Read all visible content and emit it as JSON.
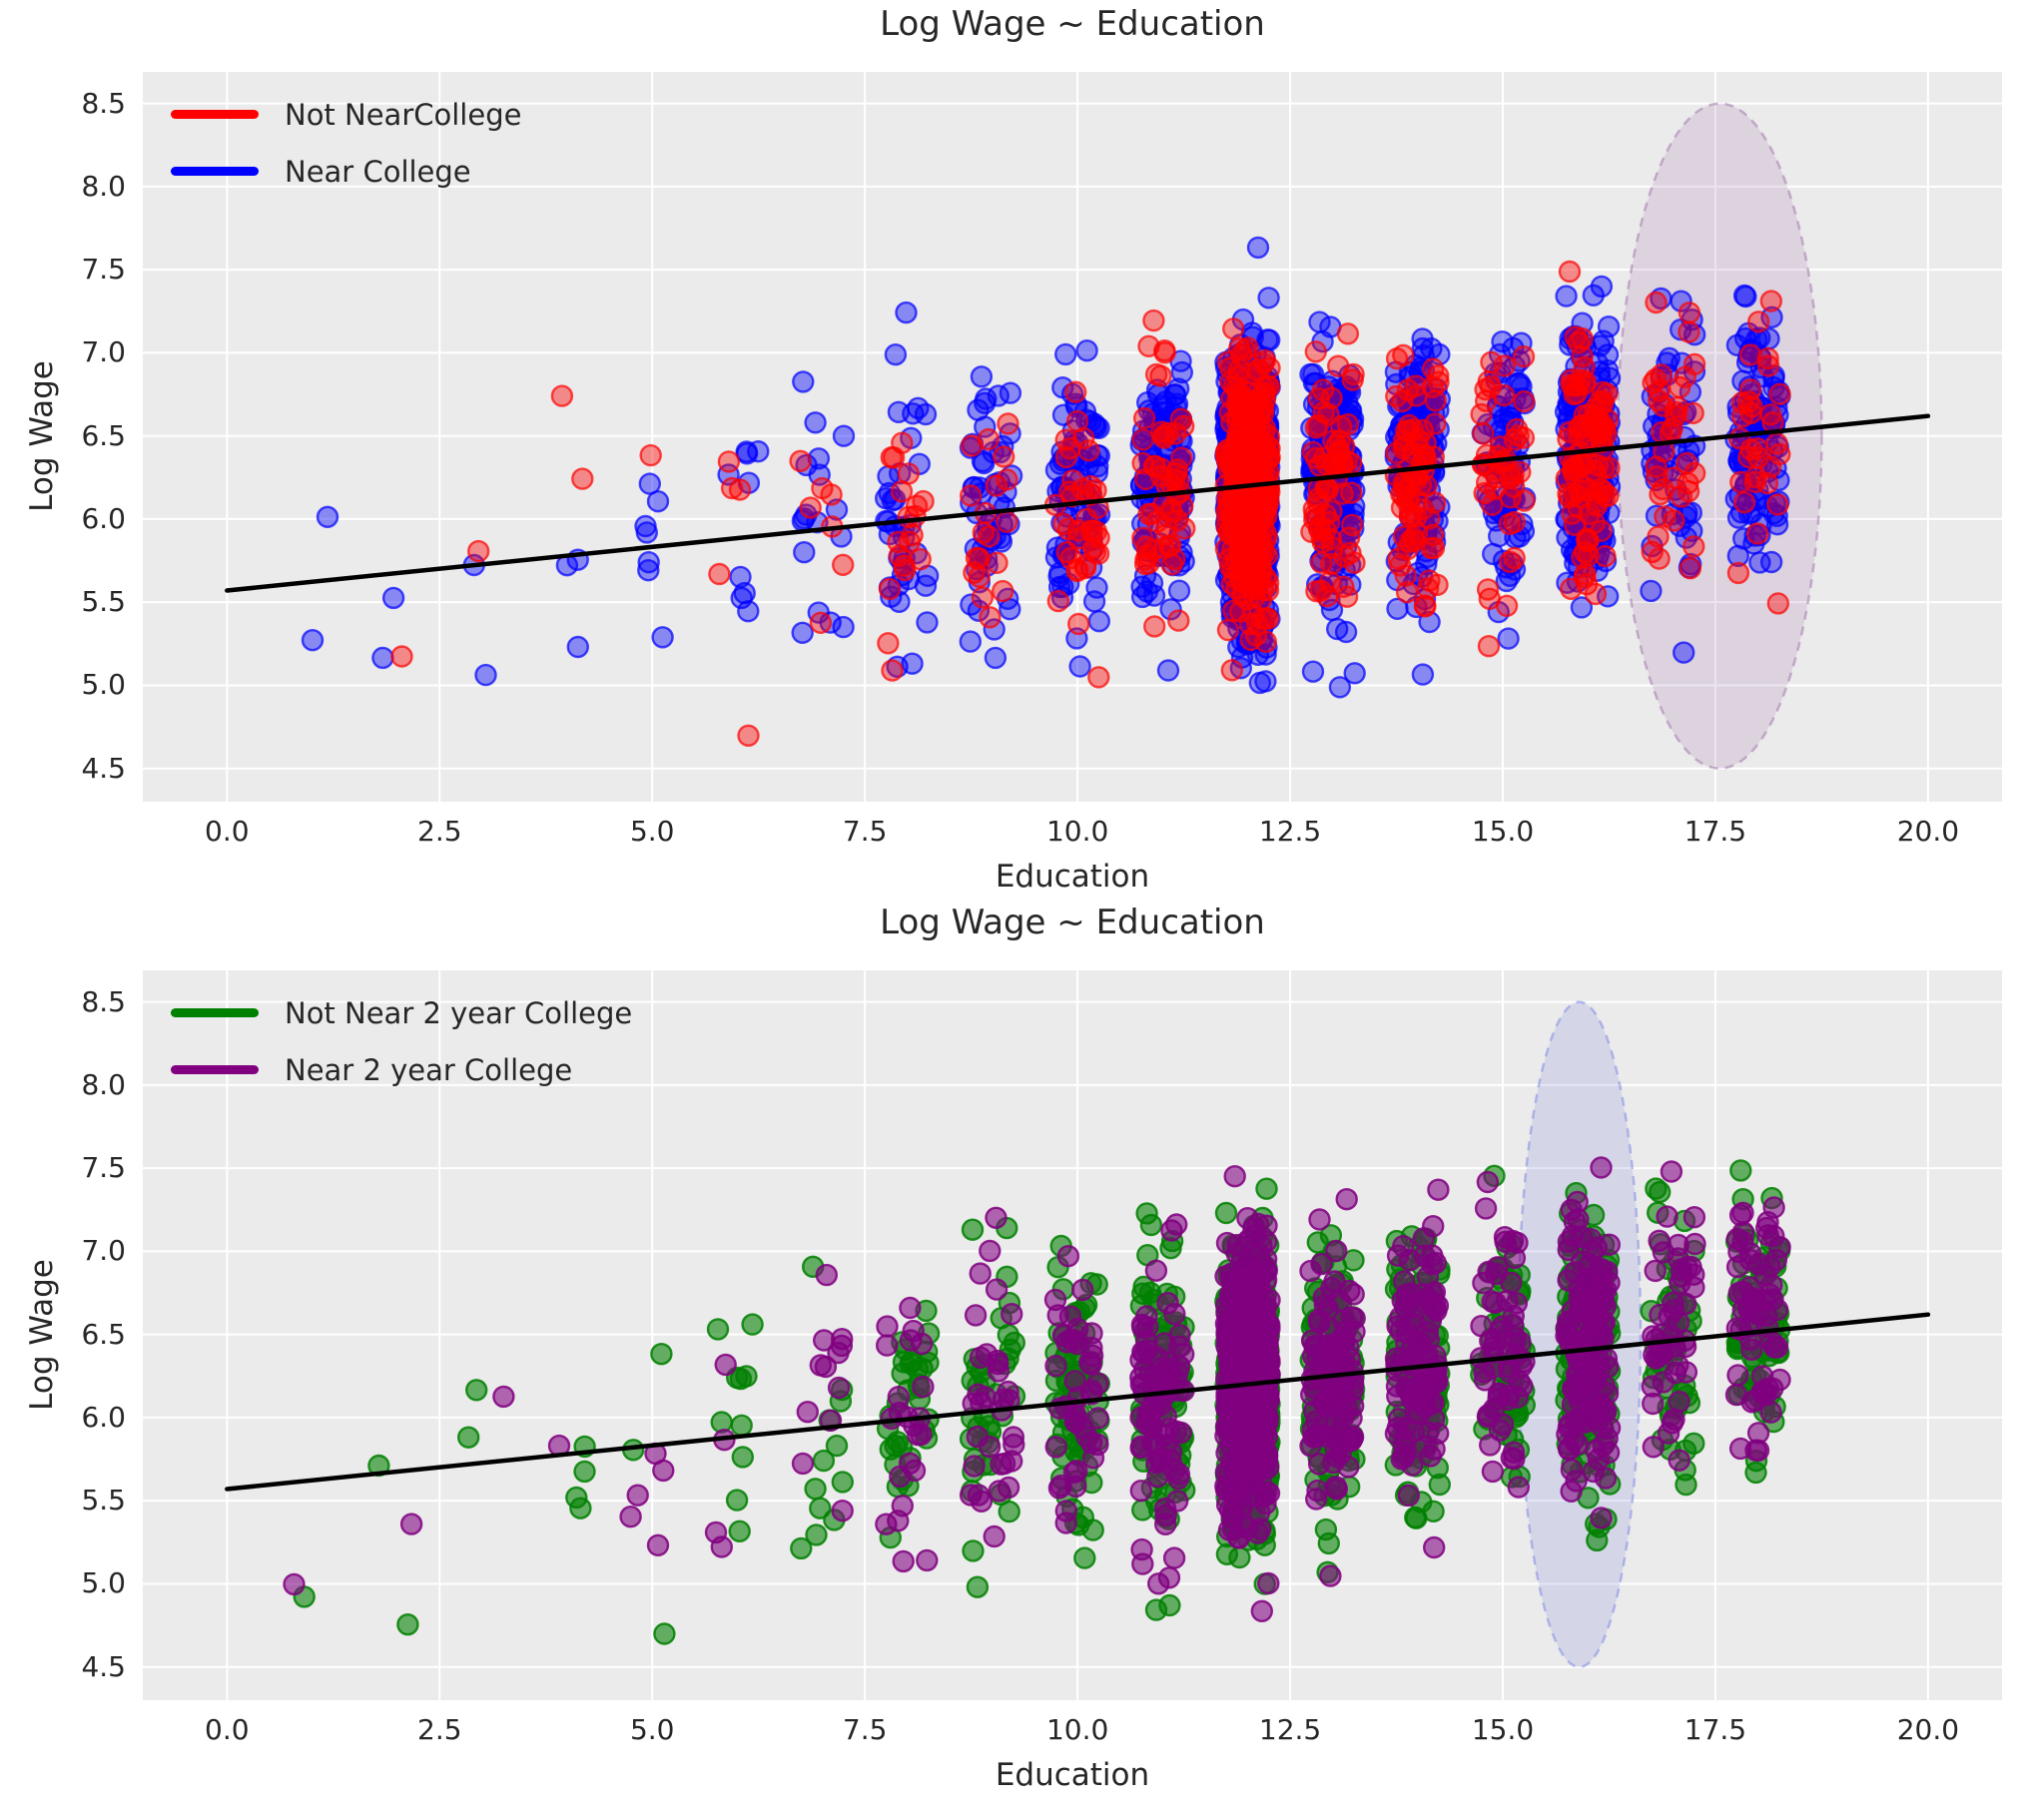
{
  "style_colors": {
    "figure_background": "#ffffff",
    "plot_background": "#ebebeb",
    "gridline": "#ffffff",
    "text": "#262626",
    "regression_line": "#000000"
  },
  "chart_data": [
    {
      "type": "scatter",
      "title": "Log Wage ~ Education",
      "xlabel": "Education",
      "ylabel": "Log Wage",
      "xlim": [
        -0.99,
        20.87
      ],
      "ylim": [
        4.3,
        8.69
      ],
      "xtick_values": [
        0,
        2.5,
        5,
        7.5,
        10,
        12.5,
        15,
        17.5,
        20
      ],
      "xtick_labels": [
        "0.0",
        "2.5",
        "5.0",
        "7.5",
        "10.0",
        "12.5",
        "15.0",
        "17.5",
        "20.0"
      ],
      "ytick_values": [
        4.5,
        5.0,
        5.5,
        6.0,
        6.5,
        7.0,
        7.5,
        8.0,
        8.5
      ],
      "ytick_labels": [
        "4.5",
        "5.0",
        "5.5",
        "6.0",
        "6.5",
        "7.0",
        "7.5",
        "8.0",
        "8.5"
      ],
      "grid": true,
      "legend_position": "upper left",
      "series": [
        {
          "name": "Not NearCollege",
          "color": "#ff0000",
          "share": 0.33
        },
        {
          "name": "Near College",
          "color": "#0000ff",
          "share": 0.67
        }
      ],
      "regression_line": {
        "x": [
          0,
          20
        ],
        "y": [
          5.57,
          6.62
        ],
        "color": "#000000",
        "width": 4.5
      },
      "highlight_ellipse": {
        "cx": 17.55,
        "cy": 6.5,
        "rx": 1.2,
        "ry": 2.0,
        "fill": "rgba(154,104,166,0.18)",
        "stroke": "rgba(160,110,170,0.5)"
      },
      "scatter": {
        "seed": 11,
        "point_radius": 10,
        "fill_alpha": 0.42,
        "stroke_alpha": 0.7,
        "stroke_width": 2.4,
        "x_jitter": 0.26,
        "draw_order": [
          1,
          0
        ],
        "wage_model": {
          "intercept": 5.57,
          "slope": 0.0525,
          "sd": 0.4,
          "min": 4.55,
          "max": 7.85
        },
        "clusters": [
          {
            "edu": 1,
            "count": 2
          },
          {
            "edu": 2,
            "count": 3
          },
          {
            "edu": 3,
            "count": 3
          },
          {
            "edu": 4,
            "count": 5
          },
          {
            "edu": 5,
            "count": 8
          },
          {
            "edu": 6,
            "count": 14
          },
          {
            "edu": 7,
            "count": 24
          },
          {
            "edu": 8,
            "count": 55
          },
          {
            "edu": 9,
            "count": 70
          },
          {
            "edu": 10,
            "count": 115
          },
          {
            "edu": 11,
            "count": 170
          },
          {
            "edu": 12,
            "count": 950
          },
          {
            "edu": 13,
            "count": 240
          },
          {
            "edu": 14,
            "count": 220
          },
          {
            "edu": 15,
            "count": 120
          },
          {
            "edu": 16,
            "count": 310
          },
          {
            "edu": 17,
            "count": 95
          },
          {
            "edu": 18,
            "count": 130
          }
        ]
      }
    },
    {
      "type": "scatter",
      "title": "Log Wage ~ Education",
      "xlabel": "Education",
      "ylabel": "Log Wage",
      "xlim": [
        -0.99,
        20.87
      ],
      "ylim": [
        4.3,
        8.69
      ],
      "xtick_values": [
        0,
        2.5,
        5,
        7.5,
        10,
        12.5,
        15,
        17.5,
        20
      ],
      "xtick_labels": [
        "0.0",
        "2.5",
        "5.0",
        "7.5",
        "10.0",
        "12.5",
        "15.0",
        "17.5",
        "20.0"
      ],
      "ytick_values": [
        4.5,
        5.0,
        5.5,
        6.0,
        6.5,
        7.0,
        7.5,
        8.0,
        8.5
      ],
      "ytick_labels": [
        "4.5",
        "5.0",
        "5.5",
        "6.0",
        "6.5",
        "7.0",
        "7.5",
        "8.0",
        "8.5"
      ],
      "grid": true,
      "legend_position": "upper left",
      "series": [
        {
          "name": "Not Near 2 year College",
          "color": "#008000",
          "share": 0.56
        },
        {
          "name": "Near 2 year College",
          "color": "#800080",
          "share": 0.44
        }
      ],
      "regression_line": {
        "x": [
          0,
          20
        ],
        "y": [
          5.57,
          6.62
        ],
        "color": "#000000",
        "width": 4.5
      },
      "highlight_ellipse": {
        "cx": 15.9,
        "cy": 6.5,
        "rx": 0.72,
        "ry": 2.0,
        "fill": "rgba(120,130,220,0.20)",
        "stroke": "rgba(130,140,225,0.55)"
      },
      "scatter": {
        "seed": 23,
        "point_radius": 10,
        "fill_alpha": 0.58,
        "stroke_alpha": 0.85,
        "stroke_width": 2.4,
        "x_jitter": 0.26,
        "draw_order": [
          0,
          1
        ],
        "wage_model": {
          "intercept": 5.57,
          "slope": 0.0525,
          "sd": 0.4,
          "min": 4.55,
          "max": 7.85
        },
        "clusters": [
          {
            "edu": 1,
            "count": 2
          },
          {
            "edu": 2,
            "count": 3
          },
          {
            "edu": 3,
            "count": 3
          },
          {
            "edu": 4,
            "count": 5
          },
          {
            "edu": 5,
            "count": 8
          },
          {
            "edu": 6,
            "count": 14
          },
          {
            "edu": 7,
            "count": 24
          },
          {
            "edu": 8,
            "count": 55
          },
          {
            "edu": 9,
            "count": 70
          },
          {
            "edu": 10,
            "count": 115
          },
          {
            "edu": 11,
            "count": 170
          },
          {
            "edu": 12,
            "count": 950
          },
          {
            "edu": 13,
            "count": 240
          },
          {
            "edu": 14,
            "count": 220
          },
          {
            "edu": 15,
            "count": 120
          },
          {
            "edu": 16,
            "count": 310
          },
          {
            "edu": 17,
            "count": 95
          },
          {
            "edu": 18,
            "count": 130
          }
        ]
      }
    }
  ]
}
